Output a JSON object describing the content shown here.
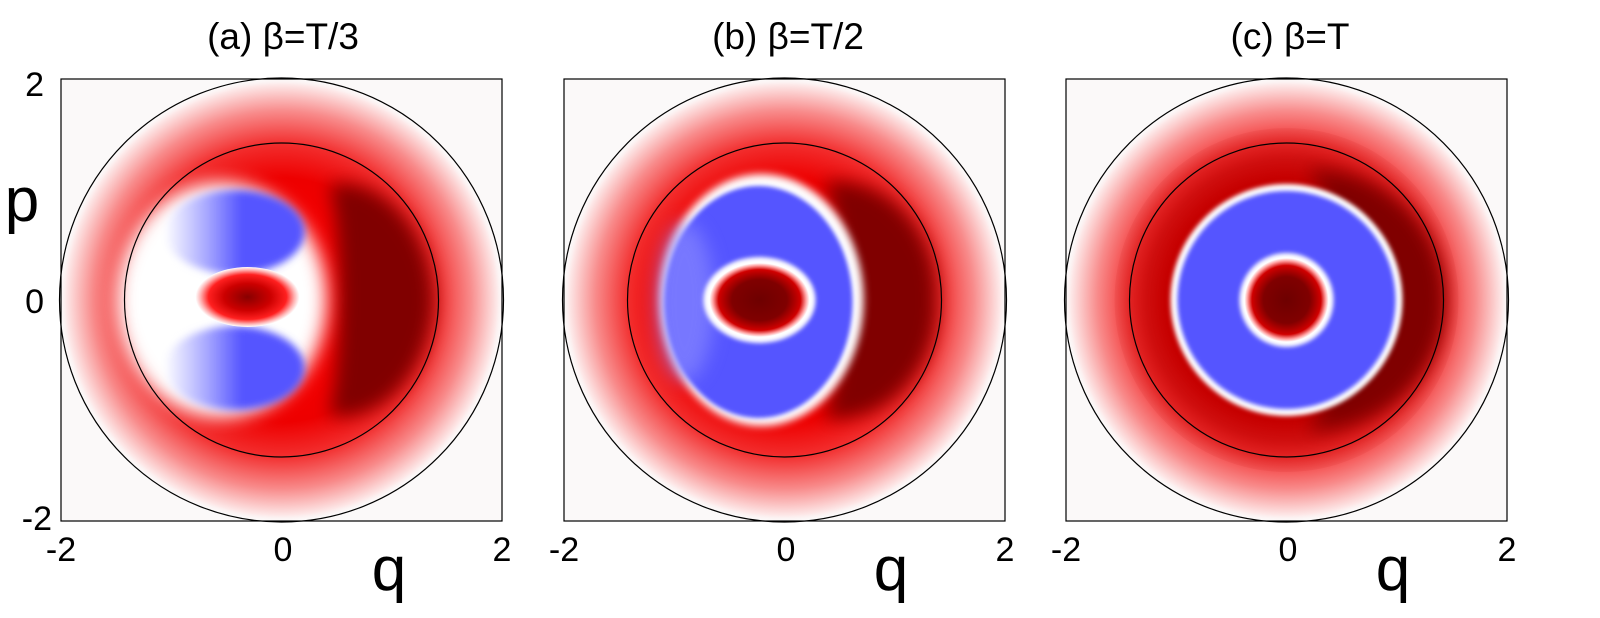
{
  "chart_data": [
    {
      "type": "heatmap",
      "title": "(a)  β=T/3",
      "xlabel": "q",
      "ylabel": "p",
      "xlim": [
        -2,
        2
      ],
      "ylim": [
        -2,
        2
      ],
      "xticks": [
        "-2",
        "0",
        "2"
      ],
      "yticks": [
        "2",
        "0",
        "-2"
      ],
      "reference_circles_radius": [
        1.41,
        2.0
      ],
      "colormap": {
        "negative": "#5555ff",
        "zero": "#ffffff",
        "positive": "#800000"
      },
      "features": [
        {
          "sign": "positive",
          "q": 1.0,
          "p": 0.0,
          "desc": "crescent"
        },
        {
          "sign": "positive",
          "q": -0.3,
          "p": 0.0,
          "desc": "small lobe"
        },
        {
          "sign": "negative",
          "q": -0.55,
          "p": 0.55
        },
        {
          "sign": "negative",
          "q": -0.55,
          "p": -0.55
        }
      ]
    },
    {
      "type": "heatmap",
      "title": "(b)  β=T/2",
      "xlabel": "q",
      "ylabel": "",
      "xlim": [
        -2,
        2
      ],
      "ylim": [
        -2,
        2
      ],
      "xticks": [
        "-2",
        "0",
        "2"
      ],
      "yticks": [],
      "reference_circles_radius": [
        1.41,
        2.0
      ],
      "colormap": {
        "negative": "#5555ff",
        "zero": "#ffffff",
        "positive": "#800000"
      },
      "features": [
        {
          "sign": "positive",
          "q": 1.0,
          "p": 0.0,
          "desc": "crescent"
        },
        {
          "sign": "positive",
          "q": -0.25,
          "p": 0.0,
          "desc": "central lobe"
        },
        {
          "sign": "negative",
          "q": -0.3,
          "p": 0.0,
          "desc": "ring"
        }
      ]
    },
    {
      "type": "heatmap",
      "title": "(c)  β=T",
      "xlabel": "q",
      "ylabel": "",
      "xlim": [
        -2,
        2
      ],
      "ylim": [
        -2,
        2
      ],
      "xticks": [
        "-2",
        "0",
        "2"
      ],
      "yticks": [],
      "reference_circles_radius": [
        1.41,
        2.0
      ],
      "colormap": {
        "negative": "#5555ff",
        "zero": "#ffffff",
        "positive": "#800000"
      },
      "features": [
        {
          "sign": "positive",
          "q": 0.0,
          "p": 0.0,
          "desc": "outer ring"
        },
        {
          "sign": "positive",
          "q": 0.0,
          "p": 0.0,
          "desc": "central disk"
        },
        {
          "sign": "negative",
          "q": 0.0,
          "p": 0.0,
          "desc": "ring"
        }
      ]
    }
  ]
}
